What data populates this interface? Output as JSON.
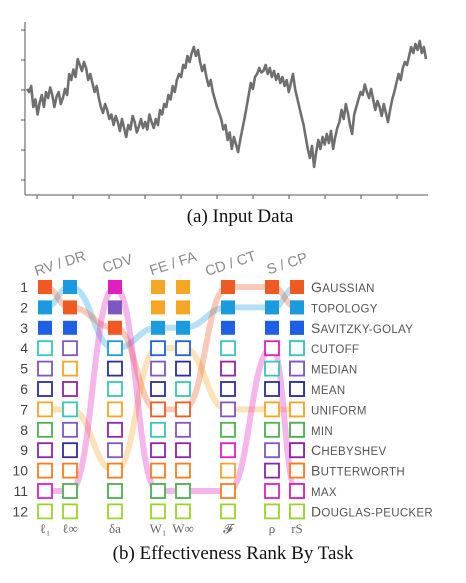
{
  "figure": {
    "caption_a": "(a)  Input Data",
    "caption_b": "(b)  Effectiveness Rank By Task",
    "line_color": "#6f6f6f",
    "input_series": [
      0.62,
      0.6,
      0.64,
      0.5,
      0.55,
      0.45,
      0.53,
      0.58,
      0.5,
      0.6,
      0.56,
      0.63,
      0.58,
      0.5,
      0.57,
      0.6,
      0.52,
      0.56,
      0.62,
      0.58,
      0.72,
      0.68,
      0.75,
      0.7,
      0.82,
      0.78,
      0.74,
      0.8,
      0.76,
      0.68,
      0.72,
      0.66,
      0.6,
      0.64,
      0.56,
      0.5,
      0.46,
      0.52,
      0.48,
      0.42,
      0.45,
      0.38,
      0.44,
      0.4,
      0.34,
      0.42,
      0.36,
      0.3,
      0.38,
      0.35,
      0.44,
      0.4,
      0.33,
      0.37,
      0.42,
      0.36,
      0.4,
      0.35,
      0.45,
      0.4,
      0.36,
      0.42,
      0.38,
      0.48,
      0.45,
      0.52,
      0.5,
      0.58,
      0.55,
      0.64,
      0.6,
      0.68,
      0.72,
      0.7,
      0.78,
      0.76,
      0.84,
      0.8,
      0.86,
      0.9,
      0.84,
      0.88,
      0.8,
      0.74,
      0.78,
      0.7,
      0.64,
      0.68,
      0.6,
      0.55,
      0.5,
      0.46,
      0.42,
      0.35,
      0.38,
      0.28,
      0.33,
      0.22,
      0.3,
      0.25,
      0.2,
      0.28,
      0.35,
      0.42,
      0.5,
      0.58,
      0.66,
      0.62,
      0.7,
      0.72,
      0.76,
      0.73,
      0.74,
      0.78,
      0.72,
      0.76,
      0.7,
      0.74,
      0.68,
      0.72,
      0.66,
      0.7,
      0.64,
      0.68,
      0.6,
      0.66,
      0.72,
      0.62,
      0.56,
      0.5,
      0.44,
      0.38,
      0.3,
      0.22,
      0.16,
      0.24,
      0.1,
      0.2,
      0.28,
      0.22,
      0.3,
      0.25,
      0.32,
      0.26,
      0.34,
      0.22,
      0.3,
      0.36,
      0.4,
      0.48,
      0.42,
      0.52,
      0.46,
      0.38,
      0.32,
      0.45,
      0.5,
      0.55,
      0.6,
      0.58,
      0.65,
      0.6,
      0.56,
      0.62,
      0.55,
      0.48,
      0.54,
      0.5,
      0.44,
      0.52,
      0.46,
      0.4,
      0.48,
      0.55,
      0.6,
      0.66,
      0.72,
      0.68,
      0.76,
      0.8,
      0.78,
      0.84,
      0.9,
      0.86,
      0.92,
      0.88,
      0.94,
      0.86,
      0.9,
      0.82
    ],
    "groups": [
      {
        "label": "RV / DR",
        "columns": [
          {
            "metric": "ℓ₁"
          },
          {
            "metric": "ℓ∞"
          }
        ]
      },
      {
        "label": "CDV",
        "columns": [
          {
            "metric": "δa"
          }
        ]
      },
      {
        "label": "FE / FA",
        "columns": [
          {
            "metric": "W₁"
          },
          {
            "metric": "W∞"
          }
        ]
      },
      {
        "label": "CD / CT",
        "columns": [
          {
            "metric": "𝓕"
          }
        ]
      },
      {
        "label": "S / CP",
        "columns": [
          {
            "metric": "ρ"
          },
          {
            "metric": "rS"
          }
        ]
      }
    ],
    "ranks": [
      "1",
      "2",
      "3",
      "4",
      "5",
      "6",
      "7",
      "8",
      "9",
      "10",
      "11",
      "12"
    ],
    "methods": [
      {
        "first": "G",
        "rest": "AUSSIAN",
        "color": "#f05a22",
        "filled": true
      },
      {
        "first": "",
        "rest": "TOPOLOGY",
        "color": "#1a9be0",
        "filled": true
      },
      {
        "first": "S",
        "rest": "AVITZKY-GOLAY",
        "color": "#1e5fe8",
        "filled": true
      },
      {
        "first": "",
        "rest": "CUTOFF",
        "color": "#37c7b7",
        "filled": false
      },
      {
        "first": "",
        "rest": "MEDIAN",
        "color": "#7e57c2",
        "filled": false
      },
      {
        "first": "",
        "rest": "MEAN",
        "color": "#2b2ea0",
        "filled": false
      },
      {
        "first": "",
        "rest": "UNIFORM",
        "color": "#f5a623",
        "filled": false
      },
      {
        "first": "",
        "rest": "MIN",
        "color": "#4caf50",
        "filled": false
      },
      {
        "first": "C",
        "rest": "HEBYSHEV",
        "color": "#8e24aa",
        "filled": false
      },
      {
        "first": "B",
        "rest": "UTTERWORTH",
        "color": "#ff7b1c",
        "filled": false
      },
      {
        "first": "",
        "rest": "MAX",
        "color": "#e01fc1",
        "filled": false
      },
      {
        "first": "D",
        "rest": "OUGLAS-PEUCKER",
        "color": "#9bd42a",
        "filled": false
      }
    ],
    "rankings": [
      [
        "G",
        "T",
        "S",
        "C",
        "Me",
        "Mn",
        "U",
        "Mi",
        "Ch",
        "B",
        "Mx",
        "D"
      ],
      [
        "T",
        "G",
        "S",
        "Ma",
        "U",
        "Ch",
        "C",
        "Me",
        "Mn",
        "B",
        "Mi",
        "D"
      ],
      [
        "Mx",
        "Ma",
        "G",
        "T",
        "Mn",
        "C",
        "U",
        "Ch",
        "Me",
        "B",
        "Mi",
        "D"
      ],
      [
        "U",
        "U",
        "T",
        "S",
        "Me",
        "Mn",
        "G",
        "C",
        "Ch",
        "B",
        "Mi",
        "D"
      ],
      [
        "U",
        "U",
        "T",
        "S",
        "Mn",
        "C",
        "G",
        "Me",
        "Ch",
        "B",
        "Mi",
        "D"
      ],
      [
        "G",
        "T",
        "S",
        "C",
        "Ch",
        "Mn",
        "Me",
        "Mi",
        "Mx",
        "U",
        "B",
        "D"
      ],
      [
        "G",
        "T",
        "S",
        "Mx",
        "C",
        "Mn",
        "U",
        "Mi",
        "Me",
        "Ch",
        "Mx",
        "D"
      ],
      [
        "T",
        "G",
        "S",
        "C",
        "Me",
        "Mn",
        "U",
        "Mi",
        "Ch",
        "B",
        "Mi",
        "D"
      ]
    ]
  }
}
